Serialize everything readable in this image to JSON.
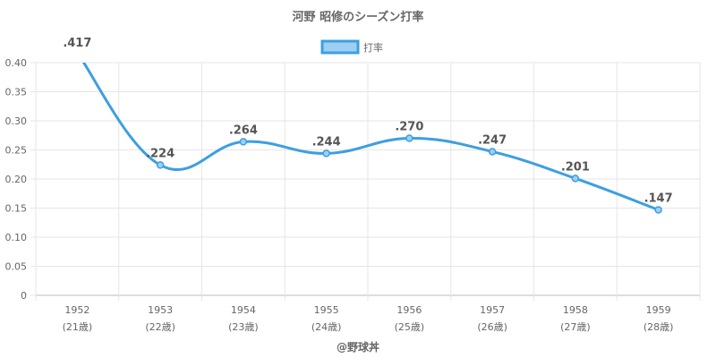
{
  "chart_data": {
    "type": "line",
    "title": "河野 昭修のシーズン打率",
    "legend": {
      "label": "打率",
      "position": "top-center"
    },
    "categories": [
      {
        "year": "1952",
        "age": "(21歳)"
      },
      {
        "year": "1953",
        "age": "(22歳)"
      },
      {
        "year": "1954",
        "age": "(23歳)"
      },
      {
        "year": "1955",
        "age": "(24歳)"
      },
      {
        "year": "1956",
        "age": "(25歳)"
      },
      {
        "year": "1957",
        "age": "(26歳)"
      },
      {
        "year": "1958",
        "age": "(27歳)"
      },
      {
        "year": "1959",
        "age": "(28歳)"
      }
    ],
    "series": [
      {
        "name": "打率",
        "values": [
          0.417,
          0.224,
          0.264,
          0.244,
          0.27,
          0.247,
          0.201,
          0.147
        ],
        "labels": [
          ".417",
          ".224",
          ".264",
          ".244",
          ".270",
          ".247",
          ".201",
          ".147"
        ]
      }
    ],
    "ylim": [
      0,
      0.4
    ],
    "yticks": [
      "0",
      "0.05",
      "0.10",
      "0.15",
      "0.20",
      "0.25",
      "0.30",
      "0.35",
      "0.40"
    ],
    "grid": true,
    "colors": {
      "line": "#3d9fe0",
      "fill": "#9ecff2",
      "grid": "#e6e6e6",
      "axis": "#bbbbbb"
    }
  },
  "footer": "@野球丼"
}
